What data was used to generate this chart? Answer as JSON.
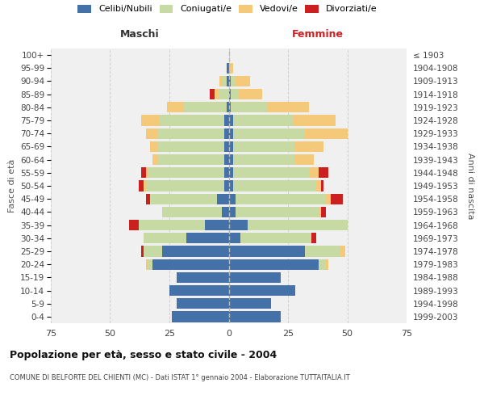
{
  "age_groups": [
    "0-4",
    "5-9",
    "10-14",
    "15-19",
    "20-24",
    "25-29",
    "30-34",
    "35-39",
    "40-44",
    "45-49",
    "50-54",
    "55-59",
    "60-64",
    "65-69",
    "70-74",
    "75-79",
    "80-84",
    "85-89",
    "90-94",
    "95-99",
    "100+"
  ],
  "birth_years": [
    "1999-2003",
    "1994-1998",
    "1989-1993",
    "1984-1988",
    "1979-1983",
    "1974-1978",
    "1969-1973",
    "1964-1968",
    "1959-1963",
    "1954-1958",
    "1949-1953",
    "1944-1948",
    "1939-1943",
    "1934-1938",
    "1929-1933",
    "1924-1928",
    "1919-1923",
    "1914-1918",
    "1909-1913",
    "1904-1908",
    "≤ 1903"
  ],
  "males": {
    "celibi": [
      24,
      22,
      25,
      22,
      32,
      28,
      18,
      10,
      3,
      5,
      2,
      2,
      2,
      2,
      2,
      2,
      1,
      0,
      1,
      1,
      0
    ],
    "coniugati": [
      0,
      0,
      0,
      0,
      2,
      8,
      18,
      28,
      25,
      28,
      33,
      32,
      28,
      28,
      28,
      27,
      18,
      4,
      2,
      0,
      0
    ],
    "vedovi": [
      0,
      0,
      0,
      0,
      1,
      0,
      0,
      0,
      0,
      0,
      1,
      1,
      2,
      3,
      5,
      8,
      7,
      2,
      1,
      0,
      0
    ],
    "divorziati": [
      0,
      0,
      0,
      0,
      0,
      1,
      0,
      4,
      0,
      2,
      2,
      2,
      0,
      0,
      0,
      0,
      0,
      2,
      0,
      0,
      0
    ]
  },
  "females": {
    "nubili": [
      22,
      18,
      28,
      22,
      38,
      32,
      5,
      8,
      3,
      3,
      2,
      2,
      2,
      2,
      2,
      2,
      1,
      1,
      1,
      0,
      0
    ],
    "coniugate": [
      0,
      0,
      0,
      0,
      3,
      15,
      30,
      42,
      35,
      38,
      35,
      32,
      26,
      26,
      30,
      25,
      15,
      3,
      2,
      0,
      0
    ],
    "vedove": [
      0,
      0,
      0,
      0,
      1,
      2,
      0,
      0,
      1,
      2,
      2,
      4,
      8,
      12,
      18,
      18,
      18,
      10,
      6,
      2,
      0
    ],
    "divorziate": [
      0,
      0,
      0,
      0,
      0,
      0,
      2,
      0,
      2,
      5,
      1,
      4,
      0,
      0,
      0,
      0,
      0,
      0,
      0,
      0,
      0
    ]
  },
  "colors": {
    "celibi_nubili": "#4472a8",
    "coniugati": "#c8daa4",
    "vedovi": "#f5c97a",
    "divorziati": "#cc2020"
  },
  "xlim": 75,
  "title": "Popolazione per età, sesso e stato civile - 2004",
  "subtitle": "COMUNE DI BELFORTE DEL CHIENTI (MC) - Dati ISTAT 1° gennaio 2004 - Elaborazione TUTTAITALIA.IT",
  "xlabel_left": "Maschi",
  "xlabel_right": "Femmine",
  "ylabel_left": "Fasce di età",
  "ylabel_right": "Anni di nascita",
  "legend_labels": [
    "Celibi/Nubili",
    "Coniugati/e",
    "Vedovi/e",
    "Divorziati/e"
  ],
  "bg_color": "#ffffff",
  "plot_bg": "#f0f0f0",
  "grid_color": "#d0d0d0"
}
